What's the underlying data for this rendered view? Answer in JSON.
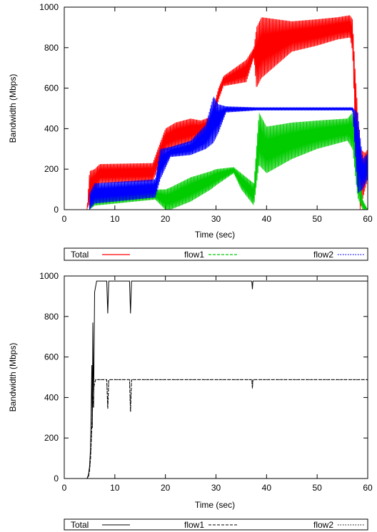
{
  "chart_data": [
    {
      "type": "line",
      "xlabel": "Time (sec)",
      "ylabel": "Bandwidth (Mbps)",
      "xlim": [
        0,
        60
      ],
      "ylim": [
        0,
        1000
      ],
      "xticks": [
        "0",
        "10",
        "20",
        "30",
        "40",
        "50",
        "60"
      ],
      "yticks": [
        "0",
        "200",
        "400",
        "600",
        "800",
        "1000"
      ],
      "grid": false,
      "legend_position": "below",
      "series": [
        {
          "name": "Total",
          "color": "#ff0000",
          "style": "solid",
          "envelope": [
            {
              "x": 4.5,
              "low": 0,
              "high": 0
            },
            {
              "x": 5.0,
              "low": 30,
              "high": 190
            },
            {
              "x": 6.0,
              "low": 80,
              "high": 200
            },
            {
              "x": 7.0,
              "low": 130,
              "high": 225
            },
            {
              "x": 17.5,
              "low": 140,
              "high": 230
            },
            {
              "x": 18.5,
              "low": 200,
              "high": 300
            },
            {
              "x": 20.0,
              "low": 290,
              "high": 400
            },
            {
              "x": 22.0,
              "low": 310,
              "high": 430
            },
            {
              "x": 25.0,
              "low": 330,
              "high": 450
            },
            {
              "x": 27.0,
              "low": 360,
              "high": 440
            },
            {
              "x": 29.0,
              "low": 380,
              "high": 460
            },
            {
              "x": 30.5,
              "low": 540,
              "high": 600
            },
            {
              "x": 31.5,
              "low": 610,
              "high": 660
            },
            {
              "x": 36.0,
              "low": 630,
              "high": 740
            },
            {
              "x": 37.5,
              "low": 750,
              "high": 800
            },
            {
              "x": 38.0,
              "low": 600,
              "high": 900
            },
            {
              "x": 39.0,
              "low": 650,
              "high": 950
            },
            {
              "x": 45.0,
              "low": 780,
              "high": 930
            },
            {
              "x": 50.0,
              "low": 810,
              "high": 940
            },
            {
              "x": 54.0,
              "low": 840,
              "high": 950
            },
            {
              "x": 56.5,
              "low": 850,
              "high": 960
            },
            {
              "x": 57.0,
              "low": 780,
              "high": 940
            },
            {
              "x": 57.5,
              "low": 400,
              "high": 700
            },
            {
              "x": 58.0,
              "low": 200,
              "high": 500
            },
            {
              "x": 58.5,
              "low": 0,
              "high": 300
            },
            {
              "x": 59.5,
              "low": 100,
              "high": 280
            },
            {
              "x": 60.0,
              "low": 150,
              "high": 300
            }
          ]
        },
        {
          "name": "flow1",
          "color": "#00cc00",
          "style": "dashed",
          "envelope": [
            {
              "x": 5.0,
              "low": 0,
              "high": 30
            },
            {
              "x": 6.0,
              "low": 20,
              "high": 85
            },
            {
              "x": 18.0,
              "low": 50,
              "high": 100
            },
            {
              "x": 20.0,
              "low": 0,
              "high": 100
            },
            {
              "x": 21.0,
              "low": 0,
              "high": 110
            },
            {
              "x": 25.0,
              "low": 40,
              "high": 160
            },
            {
              "x": 29.0,
              "low": 100,
              "high": 190
            },
            {
              "x": 30.0,
              "low": 120,
              "high": 200
            },
            {
              "x": 33.5,
              "low": 180,
              "high": 210
            },
            {
              "x": 35.0,
              "low": 100,
              "high": 180
            },
            {
              "x": 37.5,
              "low": 20,
              "high": 130
            },
            {
              "x": 38.5,
              "low": 220,
              "high": 480
            },
            {
              "x": 40.0,
              "low": 180,
              "high": 410
            },
            {
              "x": 45.0,
              "low": 250,
              "high": 430
            },
            {
              "x": 50.0,
              "low": 300,
              "high": 440
            },
            {
              "x": 56.0,
              "low": 340,
              "high": 450
            },
            {
              "x": 57.0,
              "low": 300,
              "high": 480
            },
            {
              "x": 58.0,
              "low": 60,
              "high": 300
            },
            {
              "x": 59.0,
              "low": 0,
              "high": 50
            },
            {
              "x": 60.0,
              "low": 0,
              "high": 0
            }
          ]
        },
        {
          "name": "flow2",
          "color": "#0000ff",
          "style": "dotted",
          "envelope": [
            {
              "x": 5.0,
              "low": 0,
              "high": 80
            },
            {
              "x": 6.0,
              "low": 30,
              "high": 130
            },
            {
              "x": 18.0,
              "low": 60,
              "high": 150
            },
            {
              "x": 19.0,
              "low": 150,
              "high": 300
            },
            {
              "x": 21.0,
              "low": 260,
              "high": 310
            },
            {
              "x": 25.0,
              "low": 270,
              "high": 340
            },
            {
              "x": 28.0,
              "low": 300,
              "high": 420
            },
            {
              "x": 29.5,
              "low": 330,
              "high": 560
            },
            {
              "x": 30.5,
              "low": 380,
              "high": 520
            },
            {
              "x": 32.0,
              "low": 480,
              "high": 510
            },
            {
              "x": 38.0,
              "low": 490,
              "high": 505
            },
            {
              "x": 57.0,
              "low": 490,
              "high": 505
            },
            {
              "x": 58.0,
              "low": 80,
              "high": 480
            },
            {
              "x": 59.0,
              "low": 100,
              "high": 250
            },
            {
              "x": 60.0,
              "low": 150,
              "high": 280
            }
          ]
        }
      ]
    },
    {
      "type": "line",
      "xlabel": "Time (sec)",
      "ylabel": "Bandwidth (Mbps)",
      "xlim": [
        0,
        60
      ],
      "ylim": [
        0,
        1000
      ],
      "xticks": [
        "0",
        "10",
        "20",
        "30",
        "40",
        "50",
        "60"
      ],
      "yticks": [
        "0",
        "200",
        "400",
        "600",
        "800",
        "1000"
      ],
      "grid": false,
      "legend_position": "below",
      "series": [
        {
          "name": "Total",
          "color": "#000000",
          "style": "solid",
          "x": [
            0,
            4.5,
            4.8,
            5.0,
            5.2,
            5.3,
            5.45,
            5.55,
            5.65,
            5.8,
            6.0,
            6.4,
            8.0,
            8.4,
            8.6,
            8.8,
            12.6,
            12.9,
            13.1,
            13.3,
            37.0,
            37.1,
            37.2,
            37.3,
            60
          ],
          "y": [
            0,
            0,
            20,
            60,
            150,
            300,
            560,
            250,
            770,
            350,
            920,
            975,
            975,
            975,
            815,
            975,
            975,
            975,
            815,
            975,
            975,
            970,
            935,
            975,
            975
          ]
        },
        {
          "name": "flow1",
          "color": "#000000",
          "style": "dashed",
          "x": [
            0,
            4.5,
            4.8,
            5.0,
            5.2,
            5.4,
            5.6,
            5.9,
            6.2,
            8.4,
            8.6,
            8.8,
            12.6,
            12.9,
            13.1,
            13.3,
            37.0,
            37.1,
            37.2,
            37.3,
            60
          ],
          "y": [
            0,
            0,
            10,
            40,
            100,
            220,
            350,
            460,
            488,
            488,
            345,
            488,
            488,
            488,
            330,
            488,
            488,
            484,
            445,
            488,
            488
          ]
        },
        {
          "name": "flow2",
          "color": "#000000",
          "style": "dotted",
          "x": [
            0,
            4.5,
            4.8,
            5.0,
            5.2,
            5.4,
            5.6,
            5.9,
            6.2,
            8.4,
            8.6,
            8.8,
            12.6,
            12.9,
            13.1,
            13.3,
            37.0,
            37.1,
            37.2,
            37.3,
            60
          ],
          "y": [
            0,
            0,
            10,
            40,
            100,
            220,
            350,
            460,
            488,
            488,
            345,
            488,
            488,
            488,
            330,
            488,
            488,
            484,
            445,
            488,
            488
          ]
        }
      ]
    }
  ]
}
